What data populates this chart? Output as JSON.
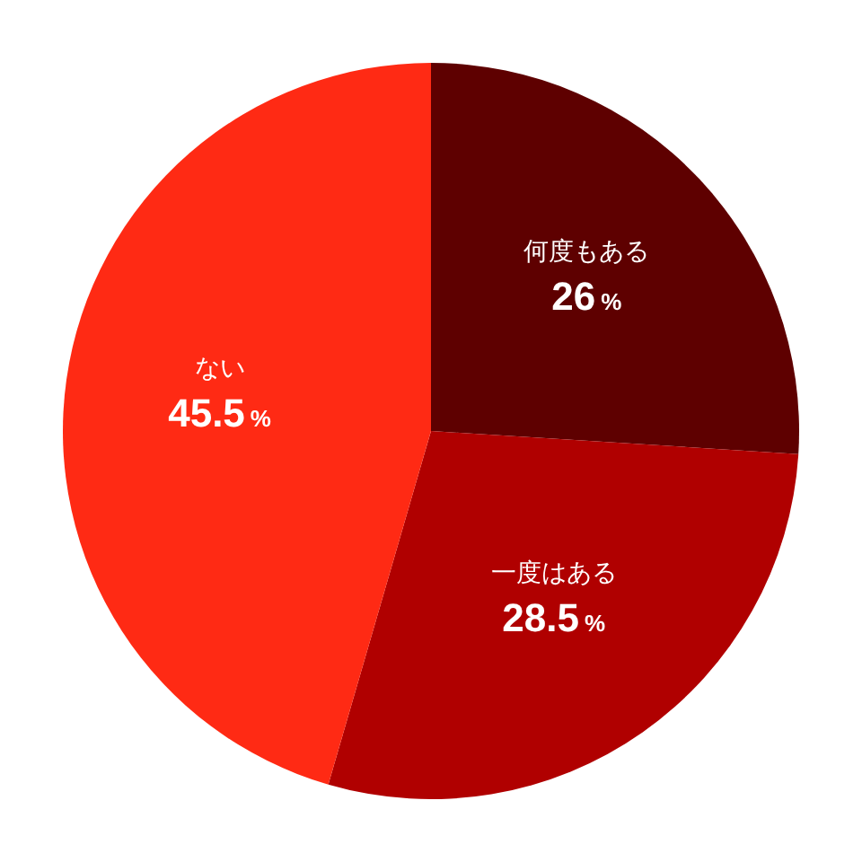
{
  "chart_data": {
    "type": "pie",
    "categories": [
      "何度もある",
      "一度はある",
      "ない"
    ],
    "values": [
      26,
      28.5,
      45.5
    ],
    "colors": [
      "#5e0000",
      "#b00000",
      "#ff2a14"
    ],
    "value_labels": [
      "26%",
      "28.5%",
      "45.5%"
    ]
  }
}
